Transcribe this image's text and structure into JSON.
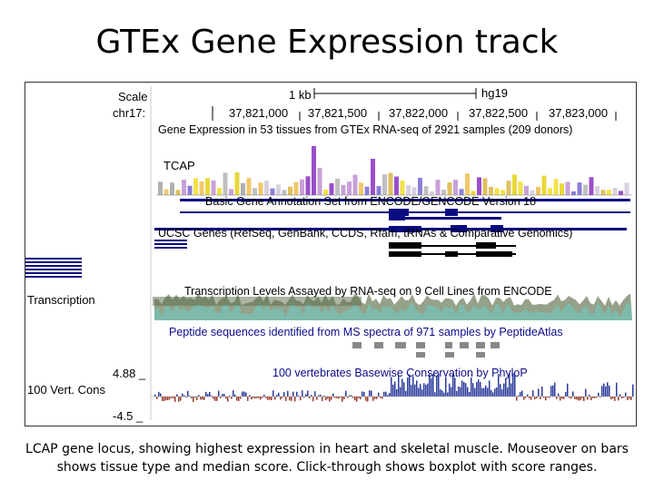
{
  "slide": {
    "title": "GTEx Gene Expression track",
    "caption": "LCAP gene locus, showing highest expression in heart and skeletal muscle.  Mouseover on bars shows tissue type and median score.  Click-through shows boxplot with score ranges."
  },
  "browser": {
    "left_labels": {
      "scale": "Scale",
      "chr": "chr17:",
      "transcription": "Transcription",
      "cons_max": "4.88 _",
      "cons_name": "100 Vert. Cons",
      "cons_min": "-4.5 _"
    },
    "scale_bar": {
      "length": "1 kb",
      "assembly": "hg19"
    },
    "positions": [
      "37,821,000",
      "37,821,500",
      "37,822,000",
      "37,822,500",
      "37,823,000"
    ],
    "tracks": {
      "gtex": "Gene Expression in 53 tissues from GTEx RNA-seq of 2921 samples (209 donors)",
      "gene_label": "TCAP",
      "gencode": "Basic Gene Annotation Set from ENCODE/GENCODE Version 18",
      "ucsc": "UCSC Genes (RefSeq, GenBank, CCDS, Rfam, tRNAs & Comparative Genomics)",
      "transcription": "Transcription Levels Assayed by RNA-seq on 9 Cell Lines from ENCODE",
      "peptide": "Peptide sequences identified from MS spectra of 971 samples by PeptideAtlas",
      "conservation": "100 vertebrates Basewise Conservation by PhyloP"
    },
    "colors": {
      "gene": "#0a0a80",
      "ucsc_gene": "#000000",
      "expression_high": "#9a4fc8",
      "conservation_pos": "#2a3a9a",
      "conservation_neg": "#9a3a2a"
    }
  }
}
